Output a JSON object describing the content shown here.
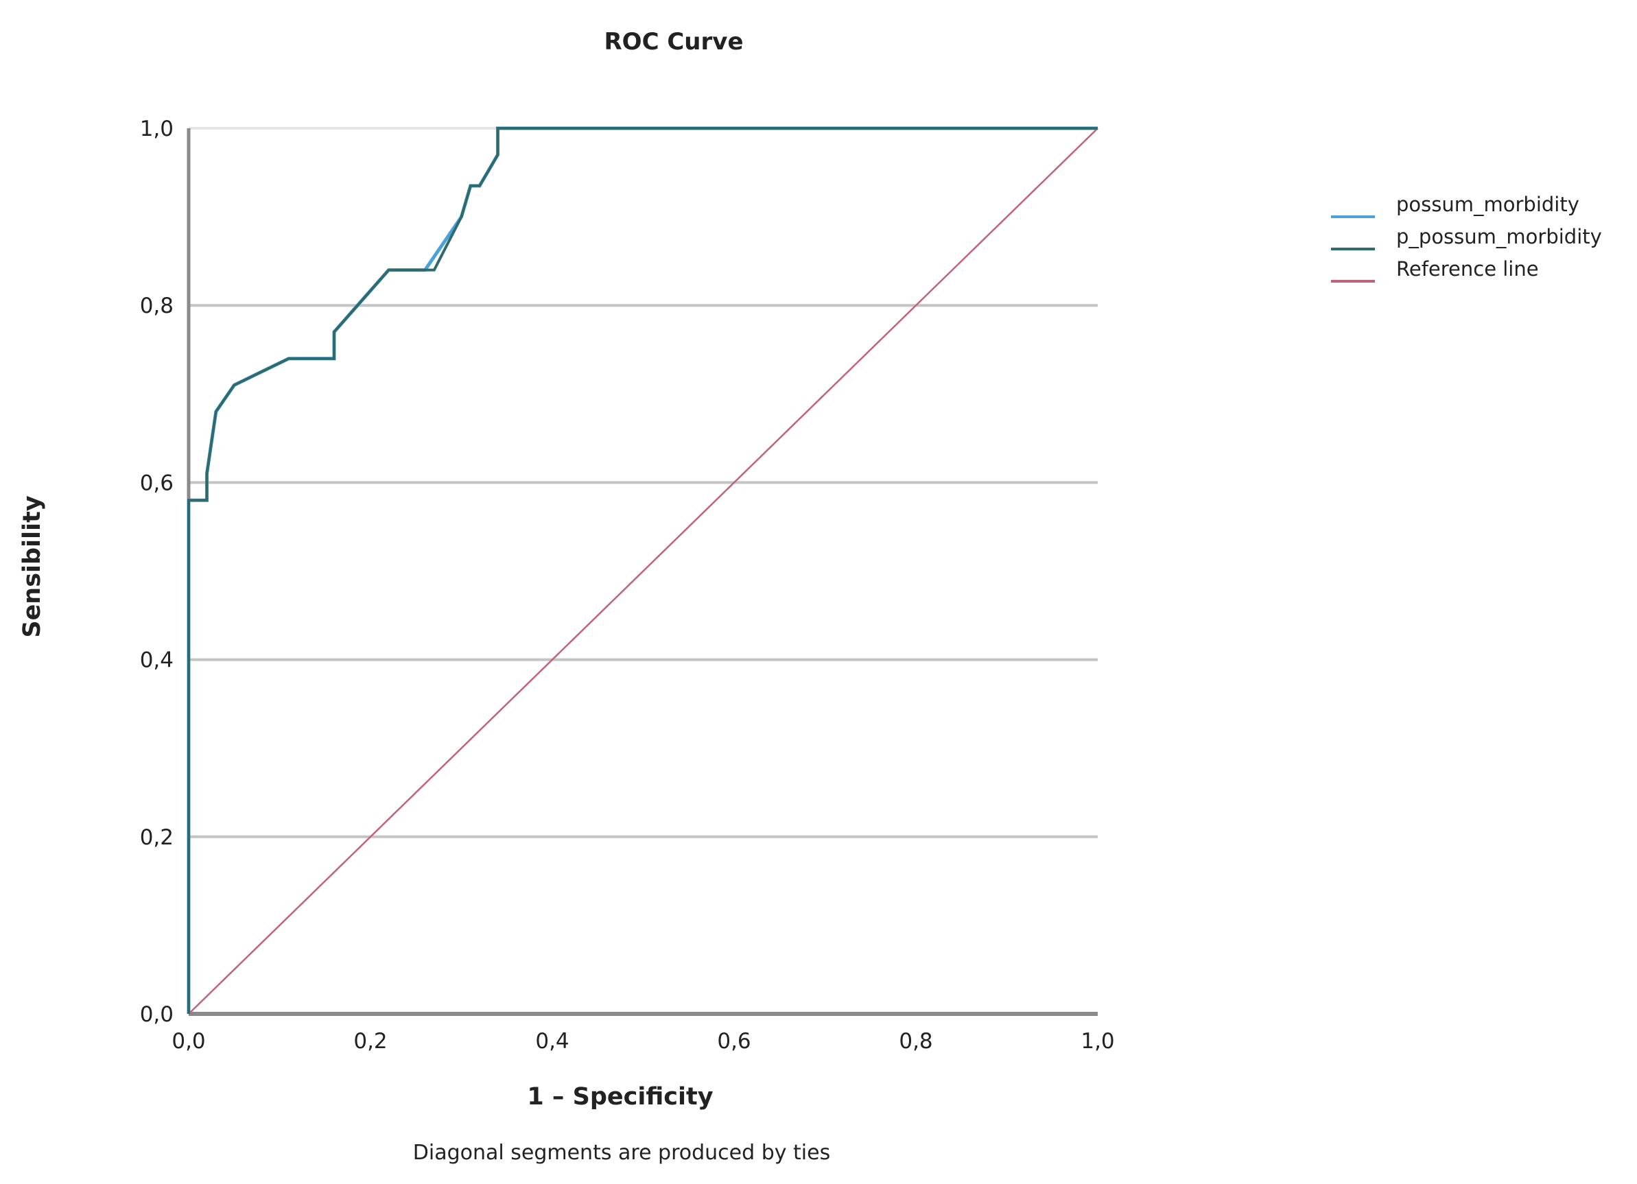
{
  "chart_data": {
    "type": "line",
    "title": "ROC Curve",
    "xlabel": "1 – Specificity",
    "ylabel": "Sensibility",
    "footnote": "Diagonal segments are produced by ties",
    "xlim": [
      0,
      1
    ],
    "ylim": [
      0,
      1
    ],
    "x_ticks": [
      "0,0",
      "0,2",
      "0,4",
      "0,6",
      "0,8",
      "1,0"
    ],
    "y_ticks": [
      "0,0",
      "0,2",
      "0,4",
      "0,6",
      "0,8",
      "1,0"
    ],
    "grid": "horizontal",
    "legend_position": "right",
    "series": [
      {
        "name": "possum_morbidity",
        "color": "#4aa3d8",
        "x": [
          0,
          0,
          0.02,
          0.02,
          0.03,
          0.05,
          0.11,
          0.16,
          0.16,
          0.22,
          0.26,
          0.3,
          0.31,
          0.32,
          0.34,
          0.34,
          1.0
        ],
        "y": [
          0,
          0.58,
          0.58,
          0.61,
          0.68,
          0.71,
          0.74,
          0.74,
          0.77,
          0.84,
          0.84,
          0.9,
          0.935,
          0.935,
          0.97,
          1.0,
          1.0
        ]
      },
      {
        "name": "p_possum_morbidity",
        "color": "#2e6b6e",
        "x": [
          0,
          0,
          0.02,
          0.02,
          0.03,
          0.05,
          0.11,
          0.16,
          0.16,
          0.22,
          0.27,
          0.3,
          0.31,
          0.32,
          0.34,
          0.34,
          1.0
        ],
        "y": [
          0,
          0.58,
          0.58,
          0.61,
          0.68,
          0.71,
          0.74,
          0.74,
          0.77,
          0.84,
          0.84,
          0.9,
          0.935,
          0.935,
          0.97,
          1.0,
          1.0
        ]
      },
      {
        "name": "Reference line",
        "color": "#c0637a",
        "x": [
          0,
          1
        ],
        "y": [
          0,
          1
        ]
      }
    ]
  }
}
